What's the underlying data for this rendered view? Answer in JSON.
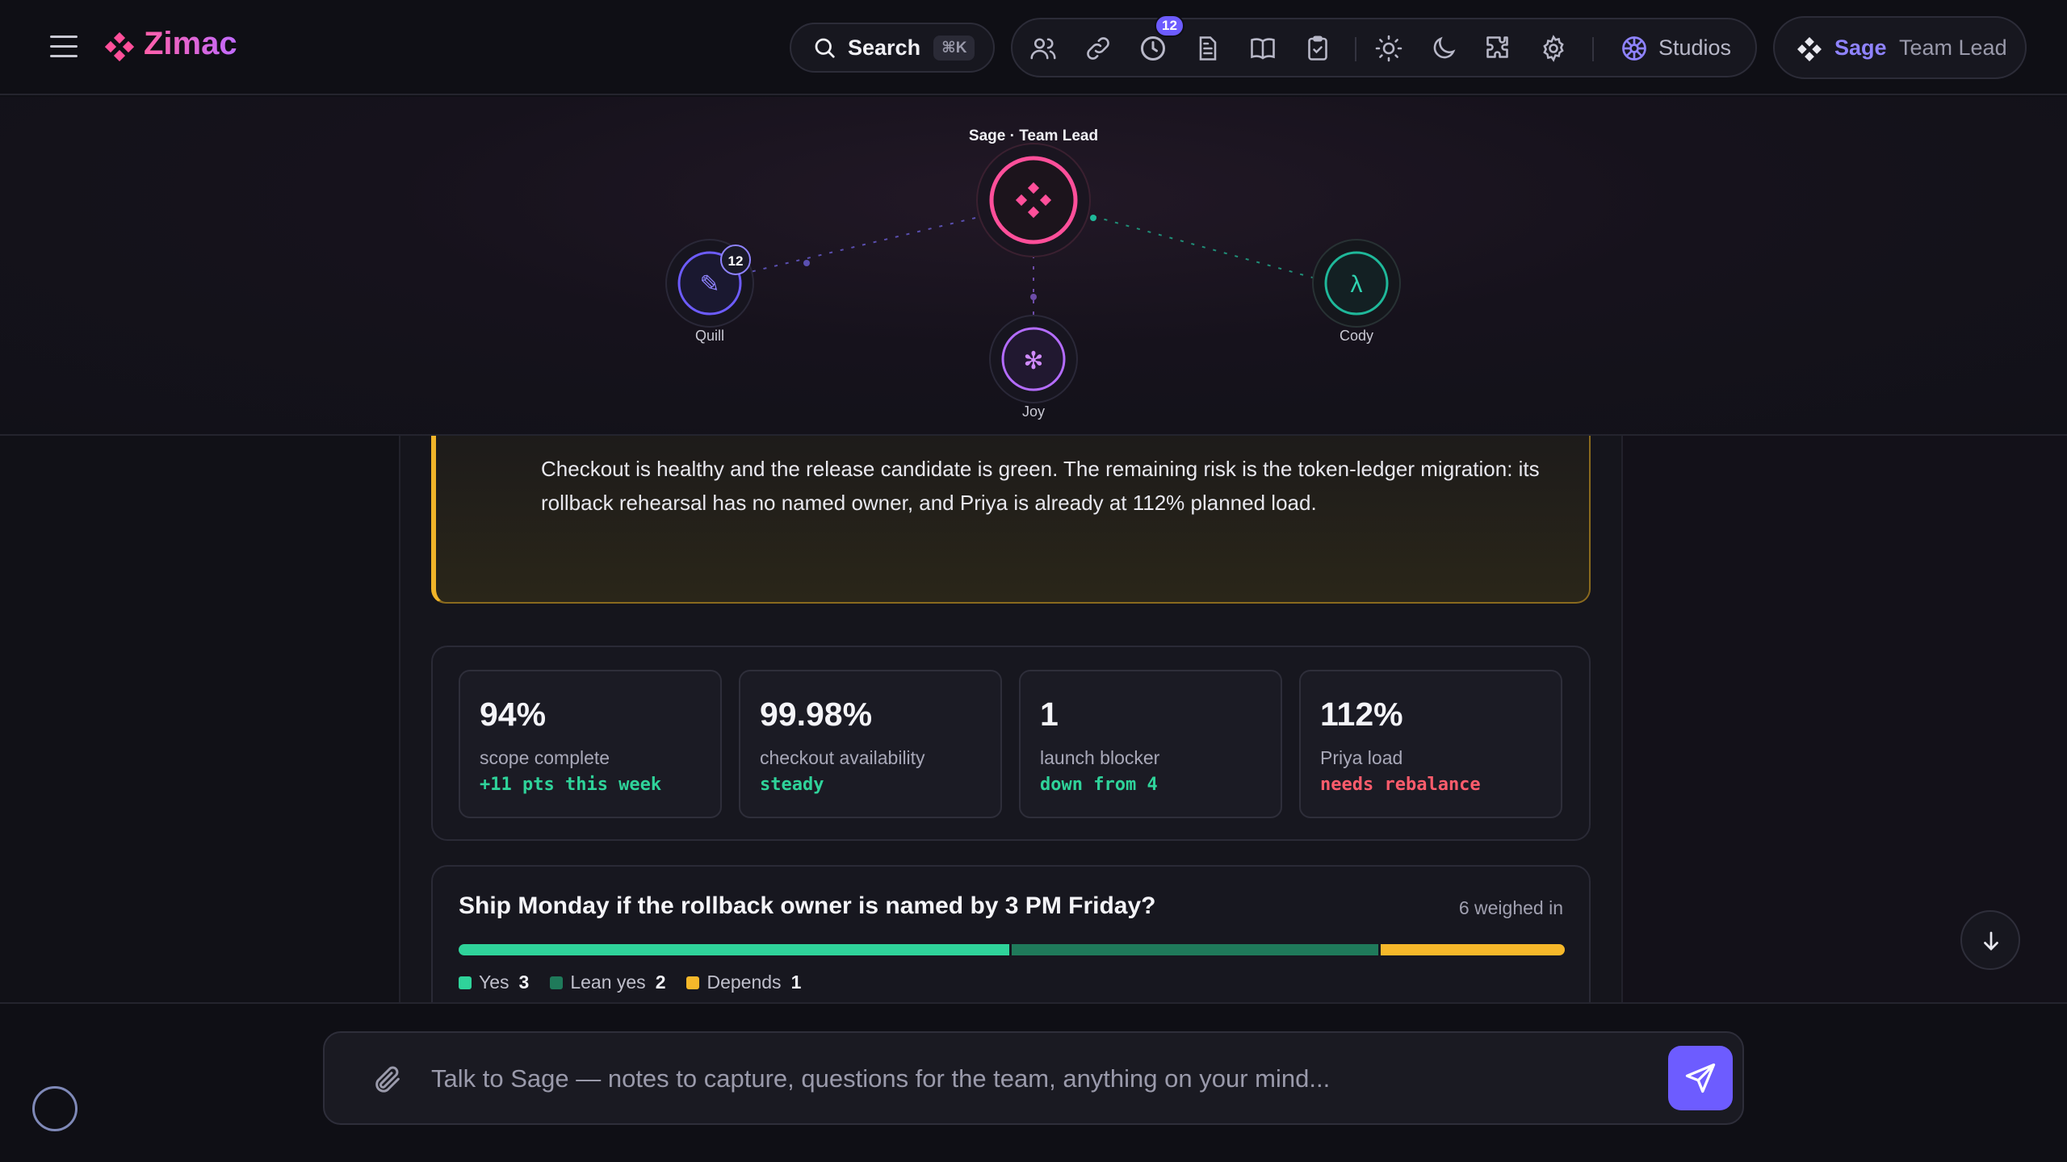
{
  "app": {
    "name": "Zimac"
  },
  "header": {
    "search_label": "Search",
    "search_shortcut": "⌘K",
    "history_badge": "12",
    "studios_label": "Studios",
    "agent_name": "Sage",
    "agent_role": "Team Lead",
    "icons": [
      "people-icon",
      "link-icon",
      "history-icon",
      "document-icon",
      "book-icon",
      "clipboard-icon",
      "sun-icon",
      "moon-icon",
      "puzzle-icon",
      "gear-icon",
      "studios-icon"
    ]
  },
  "team_graph": {
    "lead_label": "Sage · Team Lead",
    "nodes": [
      {
        "name": "Quill",
        "glyph": "✎",
        "badge": "12",
        "color": "#6d5cff"
      },
      {
        "name": "Joy",
        "glyph": "✻",
        "color": "#b46cff"
      },
      {
        "name": "Cody",
        "glyph": "λ",
        "color": "#1fb89a"
      }
    ],
    "lead_color": "#ff4f9a"
  },
  "summary": {
    "text": "Checkout is healthy and the release candidate is green. The remaining risk is the token-ledger migration: its rollback rehearsal has no named owner, and Priya is already at 112% planned load."
  },
  "stats": [
    {
      "value": "94%",
      "label": "scope complete",
      "delta": "+11 pts this week",
      "delta_color": "#2fd39a"
    },
    {
      "value": "99.98%",
      "label": "checkout availability",
      "delta": "steady",
      "delta_color": "#2fd39a"
    },
    {
      "value": "1",
      "label": "launch blocker",
      "delta": "down from 4",
      "delta_color": "#2fd39a"
    },
    {
      "value": "112%",
      "label": "Priya load",
      "delta": "needs rebalance",
      "delta_color": "#ff5c6c"
    }
  ],
  "poll": {
    "question": "Ship Monday if the rollback owner is named by 3 PM Friday?",
    "count_label": "6 weighed in",
    "options": [
      {
        "label": "Yes",
        "count": "3",
        "votes": 3,
        "color": "#2fd39a"
      },
      {
        "label": "Lean yes",
        "count": "2",
        "votes": 2,
        "color": "#1f7a5a"
      },
      {
        "label": "Depends",
        "count": "1",
        "votes": 1,
        "color": "#f6b82a"
      }
    ]
  },
  "composer": {
    "placeholder": "Talk to Sage — notes to capture, questions for the team, anything on your mind..."
  }
}
